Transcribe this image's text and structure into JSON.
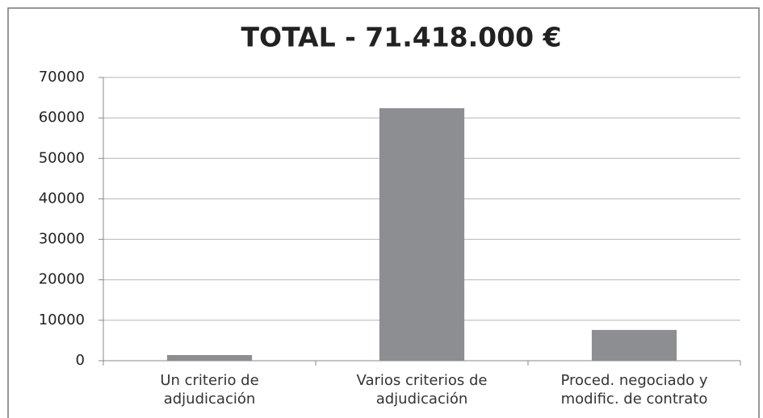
{
  "chart_data": {
    "type": "bar",
    "title": "TOTAL - 71.418.000 €",
    "categories": [
      "Un criterio de adjudicación",
      "Varios criterios de adjudicación",
      "Proced. negociado y modific. de contrato"
    ],
    "values": [
      1400,
      62400,
      7600
    ],
    "color": "#8d8e92",
    "ylim": [
      0,
      70000
    ],
    "yticks": [
      0,
      10000,
      20000,
      30000,
      40000,
      50000,
      60000,
      70000
    ],
    "grid": true
  }
}
